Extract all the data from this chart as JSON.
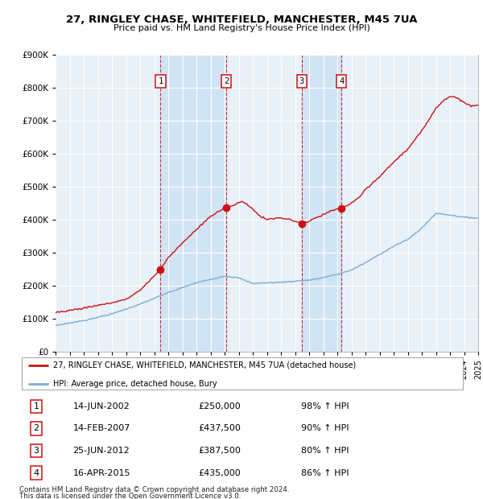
{
  "title": "27, RINGLEY CHASE, WHITEFIELD, MANCHESTER, M45 7UA",
  "subtitle": "Price paid vs. HM Land Registry's House Price Index (HPI)",
  "legend_line1": "27, RINGLEY CHASE, WHITEFIELD, MANCHESTER, M45 7UA (detached house)",
  "legend_line2": "HPI: Average price, detached house, Bury",
  "footer1": "Contains HM Land Registry data © Crown copyright and database right 2024.",
  "footer2": "This data is licensed under the Open Government Licence v3.0.",
  "transactions": [
    {
      "num": 1,
      "date": "14-JUN-2002",
      "price": "£250,000",
      "hpi": "98% ↑ HPI",
      "year": 2002.45
    },
    {
      "num": 2,
      "date": "14-FEB-2007",
      "price": "£437,500",
      "hpi": "90% ↑ HPI",
      "year": 2007.12
    },
    {
      "num": 3,
      "date": "25-JUN-2012",
      "price": "£387,500",
      "hpi": "80% ↑ HPI",
      "year": 2012.48
    },
    {
      "num": 4,
      "date": "16-APR-2015",
      "price": "£435,000",
      "hpi": "86% ↑ HPI",
      "year": 2015.29
    }
  ],
  "transaction_prices": [
    250000,
    437500,
    387500,
    435000
  ],
  "hpi_color": "#7aadd4",
  "price_color": "#cc1111",
  "marker_color": "#cc1111",
  "vline_color": "#cc1111",
  "box_color": "#cc1111",
  "shade_color": "#d0e4f5",
  "background_color": "#ffffff",
  "plot_bg_color": "#e8f0f8",
  "grid_color": "#ffffff",
  "ylim": [
    0,
    900000
  ],
  "xlim_start": 1995.0,
  "xlim_end": 2025.0
}
